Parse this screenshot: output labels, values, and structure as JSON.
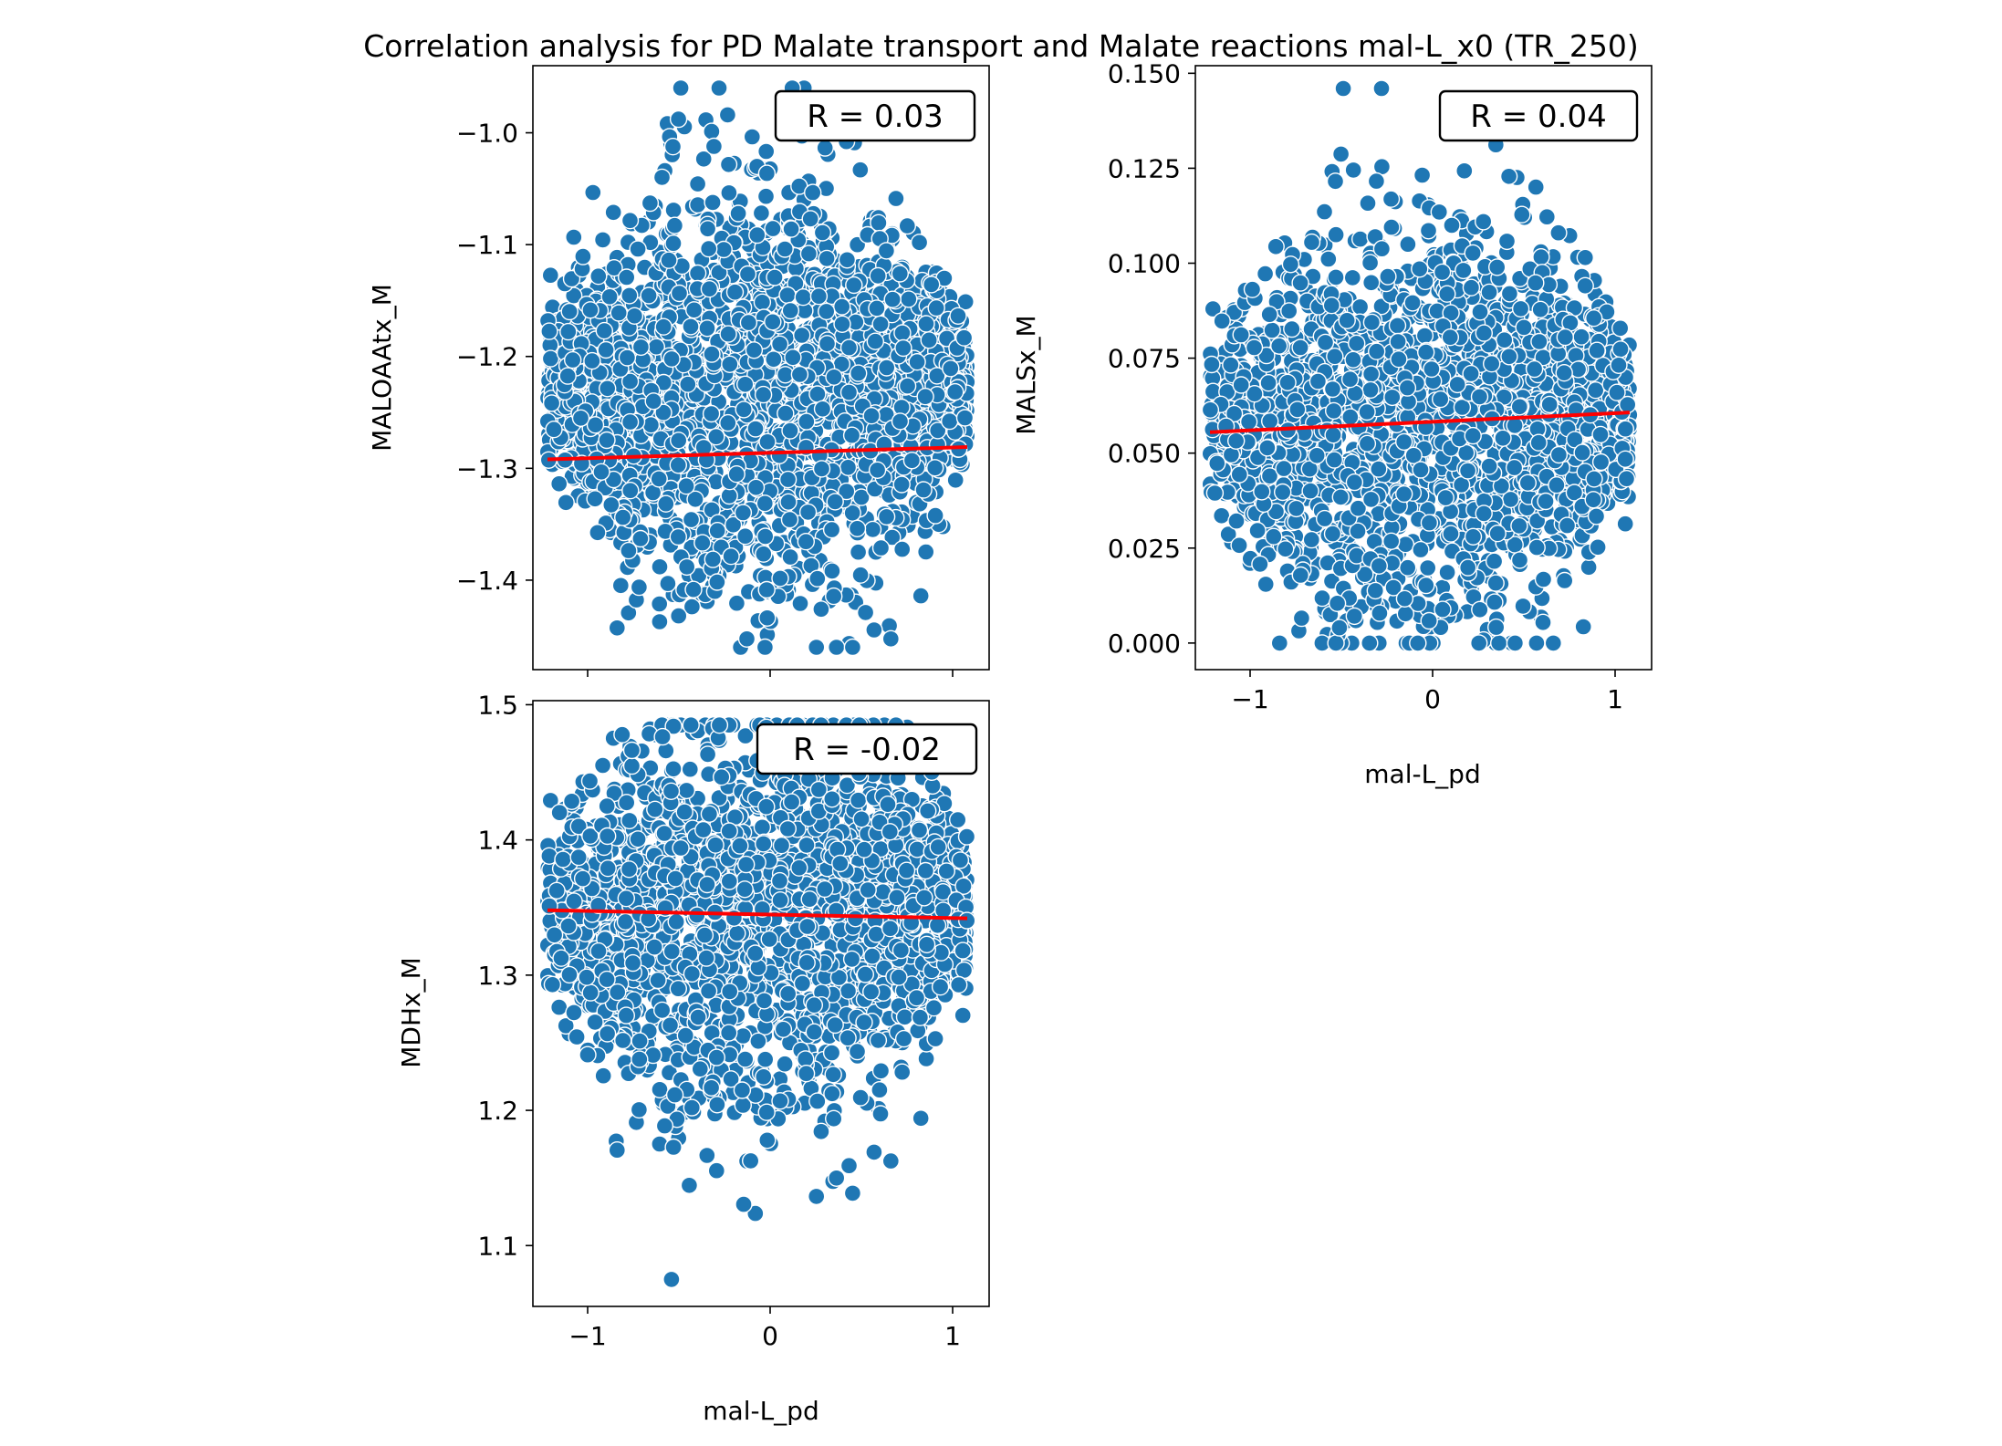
{
  "figure": {
    "title": "Correlation analysis for PD Malate transport and  Malate reactions mal-L_x0 (TR_250)"
  },
  "colors": {
    "points": "#1f77b4",
    "point_edge": "#ffffff",
    "fit_line": "#ff0000"
  },
  "chart_data": [
    {
      "type": "scatter",
      "ylabel": "MALOAAtx_M",
      "xlabel": "",
      "xlim": [
        -1.3,
        1.2
      ],
      "ylim": [
        -1.48,
        -0.94
      ],
      "xticks": [
        -1,
        0,
        1
      ],
      "yticks": [
        -1.4,
        -1.3,
        -1.2,
        -1.1,
        -1.0
      ],
      "xticklabels_visible": false,
      "annotation": "R = 0.03",
      "x_range": [
        -1.22,
        1.08
      ],
      "y_center": -1.23,
      "y_spread": [
        -1.46,
        -0.96
      ],
      "fit_line": {
        "x": [
          -1.22,
          1.08
        ],
        "y": [
          -1.292,
          -1.281
        ]
      }
    },
    {
      "type": "scatter",
      "ylabel": "MALSx_M",
      "xlabel": "mal-L_pd",
      "xlim": [
        -1.3,
        1.2
      ],
      "ylim": [
        -0.007,
        0.152
      ],
      "xticks": [
        -1,
        0,
        1
      ],
      "yticks": [
        0.0,
        0.025,
        0.05,
        0.075,
        0.1,
        0.125,
        0.15
      ],
      "xticklabels_visible": true,
      "annotation": "R = 0.04",
      "x_range": [
        -1.22,
        1.08
      ],
      "y_center": 0.058,
      "y_spread": [
        0.0,
        0.146
      ],
      "fit_line": {
        "x": [
          -1.22,
          1.08
        ],
        "y": [
          0.0555,
          0.0607
        ]
      }
    },
    {
      "type": "scatter",
      "ylabel": "MDHx_M",
      "xlabel": "mal-L_pd",
      "xlim": [
        -1.3,
        1.2
      ],
      "ylim": [
        1.055,
        1.503
      ],
      "xticks": [
        -1,
        0,
        1
      ],
      "yticks": [
        1.1,
        1.2,
        1.3,
        1.4,
        1.5
      ],
      "xticklabels_visible": true,
      "annotation": "R = -0.02",
      "x_range": [
        -1.22,
        1.08
      ],
      "y_center": 1.345,
      "y_spread": [
        1.075,
        1.485
      ],
      "fit_line": {
        "x": [
          -1.22,
          1.08
        ],
        "y": [
          1.348,
          1.342
        ]
      }
    }
  ],
  "tick_labels": {
    "x": [
      "−1",
      "0",
      "1"
    ],
    "p1_y": [
      "−1.4",
      "−1.3",
      "−1.2",
      "−1.1",
      "−1.0"
    ],
    "p2_y": [
      "0.000",
      "0.025",
      "0.050",
      "0.075",
      "0.100",
      "0.125",
      "0.150"
    ],
    "p3_y": [
      "1.1",
      "1.2",
      "1.3",
      "1.4",
      "1.5"
    ]
  }
}
